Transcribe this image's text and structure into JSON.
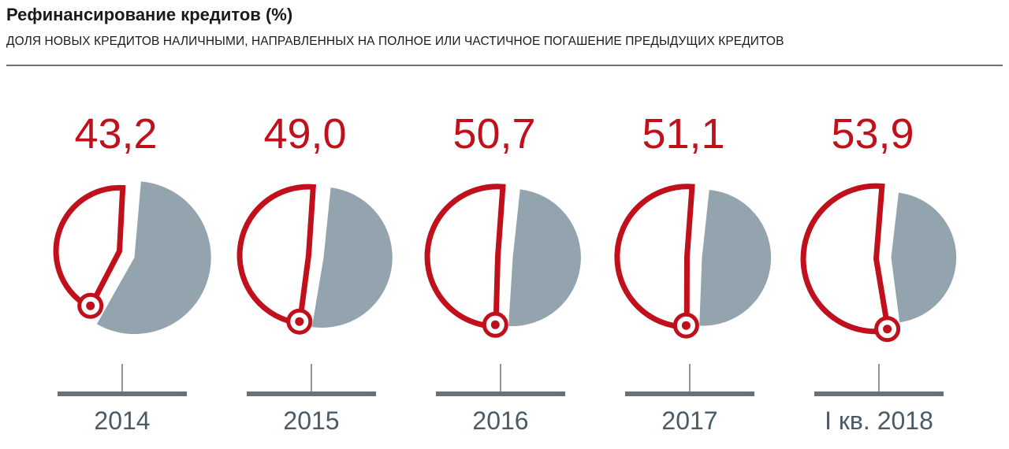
{
  "header": {
    "title": "Рефинансирование кредитов (%)",
    "subtitle": "ДОЛЯ НОВЫХ КРЕДИТОВ НАЛИЧНЫМИ, НАПРАВЛЕННЫХ НА ПОЛНОЕ ИЛИ ЧАСТИЧНОЕ ПОГАШЕНИЕ ПРЕДЫДУЩИХ КРЕДИТОВ"
  },
  "colors": {
    "accent": "#c0101c",
    "rest": "#94a4ae",
    "axis": "#66737c",
    "text": "#1a1a1a",
    "year": "#4a5a66",
    "rule": "#66737c"
  },
  "chart_data": {
    "type": "pie",
    "categories": [
      "2014",
      "2015",
      "2016",
      "2017",
      "I кв. 2018"
    ],
    "values": [
      43.2,
      49.0,
      50.7,
      51.1,
      53.9
    ],
    "value_labels": [
      "43,2",
      "49,0",
      "50,7",
      "51,1",
      "53,9"
    ],
    "unit": "%",
    "title": "Рефинансирование кредитов (%)"
  }
}
